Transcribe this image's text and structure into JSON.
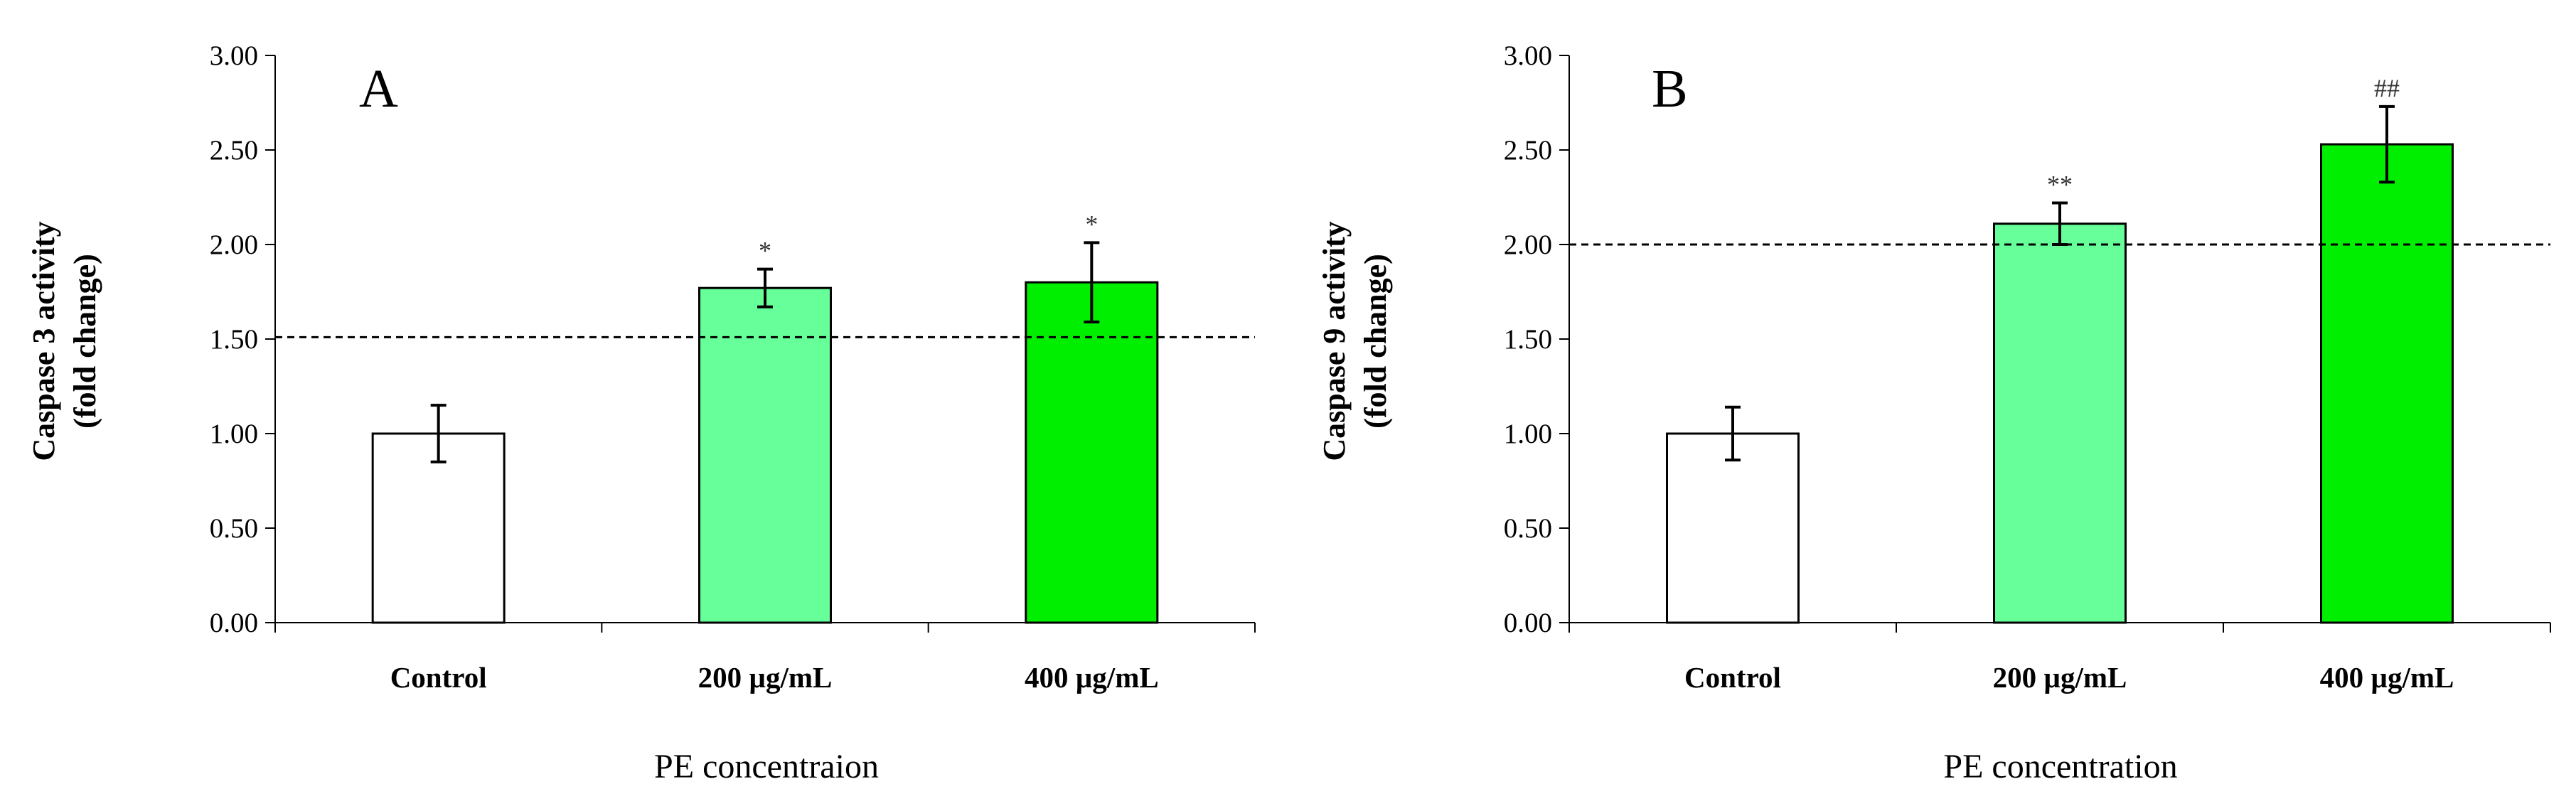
{
  "chart_data": [
    {
      "type": "bar",
      "panel_label": "A",
      "title": "",
      "xlabel": "PE concentraion",
      "ylabel_line1": "Caspase 3 activity",
      "ylabel_line2": "(fold change)",
      "ylim": [
        0,
        3
      ],
      "yticks": [
        "0.00",
        "0.50",
        "1.00",
        "1.50",
        "2.00",
        "2.50",
        "3.00"
      ],
      "grid": false,
      "categories": [
        "Control",
        "200 µg/mL",
        "400 µg/mL"
      ],
      "values": [
        1.0,
        1.77,
        1.8
      ],
      "errors": [
        0.15,
        0.1,
        0.21
      ],
      "significance": [
        "",
        "*",
        "*"
      ],
      "colors": [
        "#ffffff",
        "#66ff99",
        "#00ee00"
      ],
      "reference_line": 1.51
    },
    {
      "type": "bar",
      "panel_label": "B",
      "title": "",
      "xlabel": "PE concentration",
      "ylabel_line1": "Caspase 9 activity",
      "ylabel_line2": "(fold change)",
      "ylim": [
        0,
        3
      ],
      "yticks": [
        "0.00",
        "0.50",
        "1.00",
        "1.50",
        "2.00",
        "2.50",
        "3.00"
      ],
      "grid": false,
      "categories": [
        "Control",
        "200 µg/mL",
        "400 µg/mL"
      ],
      "values": [
        1.0,
        2.11,
        2.53
      ],
      "errors": [
        0.14,
        0.11,
        0.2
      ],
      "significance": [
        "",
        "**",
        "##"
      ],
      "colors": [
        "#ffffff",
        "#66ff99",
        "#00ee00"
      ],
      "reference_line": 2.0
    }
  ]
}
